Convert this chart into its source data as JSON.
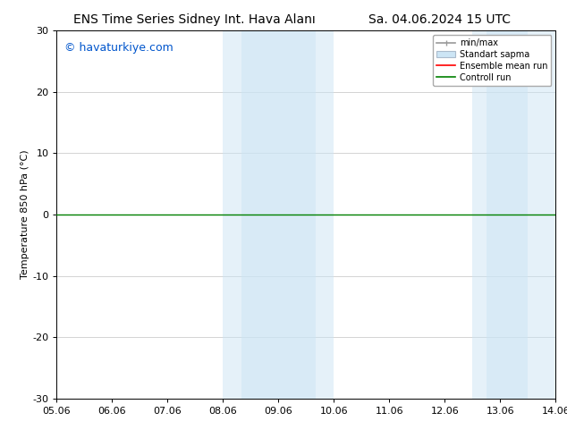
{
  "title_left": "ENS Time Series Sidney Int. Hava Alanı",
  "title_right": "Sa. 04.06.2024 15 UTC",
  "ylabel": "Temperature 850 hPa (°C)",
  "watermark": "© havaturkiye.com",
  "watermark_color": "#0055cc",
  "xlim_start": 0,
  "xlim_end": 9,
  "ylim": [
    -30,
    30
  ],
  "yticks": [
    -30,
    -20,
    -10,
    0,
    10,
    20,
    30
  ],
  "xtick_labels": [
    "05.06",
    "06.06",
    "07.06",
    "08.06",
    "09.06",
    "10.06",
    "11.06",
    "12.06",
    "13.06",
    "14.06"
  ],
  "xtick_positions": [
    0,
    1,
    2,
    3,
    4,
    5,
    6,
    7,
    8,
    9
  ],
  "band1_outer_x0": 3.0,
  "band1_outer_x1": 5.0,
  "band1_inner_x0": 3.33,
  "band1_inner_x1": 4.67,
  "band2_outer_x0": 7.5,
  "band2_outer_x1": 9.0,
  "band2_inner_x0": 7.75,
  "band2_inner_x1": 8.5,
  "shade_color": "#cce5f5",
  "shade_alpha_outer": 0.5,
  "shade_alpha_inner": 0.5,
  "control_run_color": "#008000",
  "ensemble_mean_color": "#ff0000",
  "minmax_color": "#999999",
  "background_color": "#ffffff",
  "plot_bg_color": "#f5f5f5",
  "grid_color": "#cccccc",
  "legend_fontsize": 7,
  "title_fontsize": 10,
  "ylabel_fontsize": 8,
  "watermark_fontsize": 9,
  "tick_fontsize": 8
}
